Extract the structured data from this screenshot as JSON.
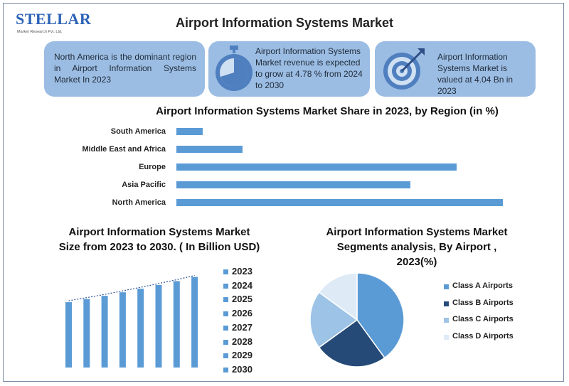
{
  "logo": {
    "name": "STELLAR",
    "tagline": "Market Research Pvt. Ltd."
  },
  "title": "Airport Information Systems Market",
  "cards": [
    {
      "text": "North America is the dominant region in Airport Information Systems Market In 2023",
      "icon": "none"
    },
    {
      "text": "Airport Information Systems Market revenue is expected to grow at 4.78 % from 2024 to 2030",
      "icon": "stopwatch-icon"
    },
    {
      "text": "Airport Information Systems Market is valued at 4.04 Bn in 2023",
      "icon": "target-icon"
    }
  ],
  "colors": {
    "card_bg": "#9cbde3",
    "bar": "#5b9bd5",
    "class_a": "#5b9bd5",
    "class_b": "#264a78",
    "class_c": "#9dc3e6",
    "class_d": "#deebf7"
  },
  "chart_data": [
    {
      "type": "bar",
      "orientation": "horizontal",
      "title": "Airport Information Systems Market Share in 2023, by Region (in %)",
      "categories": [
        "South America",
        "Middle East and Africa",
        "Europe",
        "Asia Pacific",
        "North America"
      ],
      "values": [
        8,
        20,
        85,
        71,
        99
      ],
      "xlim": [
        0,
        100
      ]
    },
    {
      "type": "bar",
      "title": "Airport Information Systems Market Size from 2023 to 2030. ( In Billion  USD)",
      "categories": [
        "2023",
        "2024",
        "2025",
        "2026",
        "2027",
        "2028",
        "2029",
        "2030"
      ],
      "values": [
        4.04,
        4.23,
        4.43,
        4.65,
        4.87,
        5.1,
        5.34,
        5.6
      ],
      "ylim": [
        0,
        5.8
      ],
      "trendline": true,
      "legend_position": "right"
    },
    {
      "type": "pie",
      "title": "Airport Information Systems Market Segments analysis, By Airport , 2023(%)",
      "labels": [
        "Class A Airports",
        "Class B Airports",
        "Class C Airports",
        "Class D Airports"
      ],
      "values": [
        40,
        25,
        20,
        15
      ],
      "legend_position": "right"
    }
  ]
}
